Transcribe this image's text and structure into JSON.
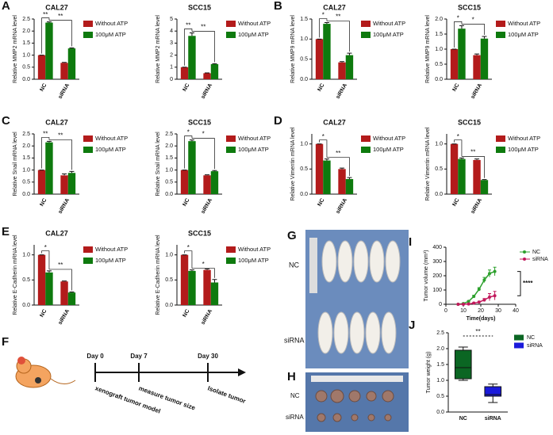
{
  "panels": {
    "letters": [
      "A",
      "B",
      "C",
      "D",
      "E",
      "F",
      "G",
      "H",
      "I",
      "J"
    ]
  },
  "diagram": {
    "days": [
      "Day 0",
      "Day 7",
      "Day 30"
    ],
    "steps": [
      "xenograft tumor model",
      "measure tumor size",
      "Isolate tumor"
    ]
  },
  "photos": {
    "G": {
      "labels": [
        "NC",
        "siRNA"
      ]
    },
    "H": {
      "labels": [
        "NC",
        "siRNA"
      ]
    }
  },
  "chart_data": [
    {
      "type": "bar",
      "title": "CAL27",
      "y_label": "Relative MMP2 mRNA level",
      "categories": [
        "NC",
        "siRNA"
      ],
      "series": [
        {
          "name": "Without ATP",
          "color": "#b31b1b",
          "values": [
            1.0,
            0.68
          ],
          "errors": [
            0,
            0.02
          ]
        },
        {
          "name": "100μM ATP",
          "color": "#0e7a0e",
          "values": [
            2.35,
            1.28
          ],
          "errors": [
            0.03,
            0.02
          ]
        }
      ],
      "ylim": [
        0,
        2.5
      ],
      "yticks": [
        {
          "value": 0,
          "label": "0.0"
        },
        {
          "value": 0.5,
          "label": "0.5"
        },
        {
          "value": 1,
          "label": "1.0"
        },
        {
          "value": 1.5,
          "label": "1.5"
        },
        {
          "value": 2,
          "label": "2.0"
        },
        {
          "value": 2.5,
          "label": "2.5"
        }
      ],
      "annotations": [
        "**",
        "**"
      ]
    },
    {
      "type": "bar",
      "title": "SCC15",
      "y_label": "Relative MMP2 mRNA level",
      "categories": [
        "NC",
        "siRNA"
      ],
      "series": [
        {
          "name": "Without ATP",
          "color": "#b31b1b",
          "values": [
            1.0,
            0.5
          ],
          "errors": [
            0,
            0.03
          ]
        },
        {
          "name": "100μM ATP",
          "color": "#0e7a0e",
          "values": [
            3.6,
            1.25
          ],
          "errors": [
            0.25,
            0.04
          ]
        }
      ],
      "ylim": [
        0,
        5
      ],
      "yticks": [
        0,
        1,
        2,
        3,
        4,
        5
      ],
      "annotations": [
        "**",
        "**"
      ]
    },
    {
      "type": "bar",
      "title": "CAL27",
      "y_label": "Relative MMP9 mRNA level",
      "categories": [
        "NC",
        "siRNA"
      ],
      "series": [
        {
          "name": "Without ATP",
          "color": "#b31b1b",
          "values": [
            1.0,
            0.42
          ],
          "errors": [
            0,
            0.02
          ]
        },
        {
          "name": "100μM ATP",
          "color": "#0e7a0e",
          "values": [
            1.38,
            0.6
          ],
          "errors": [
            0.03,
            0.05
          ]
        }
      ],
      "ylim": [
        0,
        1.5
      ],
      "yticks": [
        {
          "value": 0,
          "label": "0.0"
        },
        {
          "value": 0.5,
          "label": "0.5"
        },
        {
          "value": 1,
          "label": "1.0"
        },
        {
          "value": 1.5,
          "label": "1.5"
        }
      ],
      "annotations": [
        "*",
        "**"
      ]
    },
    {
      "type": "bar",
      "title": "SCC15",
      "y_label": "Relative MMP9 mRNA level",
      "categories": [
        "NC",
        "siRNA"
      ],
      "series": [
        {
          "name": "Without ATP",
          "color": "#b31b1b",
          "values": [
            1.0,
            0.8
          ],
          "errors": [
            0,
            0.04
          ]
        },
        {
          "name": "100μM ATP",
          "color": "#0e7a0e",
          "values": [
            1.68,
            1.35
          ],
          "errors": [
            0.1,
            0.07
          ]
        }
      ],
      "ylim": [
        0,
        2
      ],
      "yticks": [
        {
          "value": 0,
          "label": "0.0"
        },
        {
          "value": 0.5,
          "label": "0.5"
        },
        {
          "value": 1,
          "label": "1.0"
        },
        {
          "value": 1.5,
          "label": "1.5"
        },
        {
          "value": 2,
          "label": "2.0"
        }
      ],
      "annotations": [
        "*",
        "*"
      ]
    },
    {
      "type": "bar",
      "title": "CAL27",
      "y_label": "Relative Snail mRNA level",
      "categories": [
        "NC",
        "siRNA"
      ],
      "series": [
        {
          "name": "Without ATP",
          "color": "#b31b1b",
          "values": [
            1.0,
            0.78
          ],
          "errors": [
            0,
            0.06
          ]
        },
        {
          "name": "100μM ATP",
          "color": "#0e7a0e",
          "values": [
            2.15,
            0.88
          ],
          "errors": [
            0.04,
            0.06
          ]
        }
      ],
      "ylim": [
        0,
        2.5
      ],
      "yticks": [
        {
          "value": 0,
          "label": "0.0"
        },
        {
          "value": 0.5,
          "label": "0.5"
        },
        {
          "value": 1,
          "label": "1.0"
        },
        {
          "value": 1.5,
          "label": "1.5"
        },
        {
          "value": 2,
          "label": "2.0"
        },
        {
          "value": 2.5,
          "label": "2.5"
        }
      ],
      "annotations": [
        "**",
        "**"
      ]
    },
    {
      "type": "bar",
      "title": "SCC15",
      "y_label": "Relative Snail mRNA level",
      "categories": [
        "NC",
        "siRNA"
      ],
      "series": [
        {
          "name": "Without ATP",
          "color": "#b31b1b",
          "values": [
            1.0,
            0.78
          ],
          "errors": [
            0,
            0.02
          ]
        },
        {
          "name": "100μM ATP",
          "color": "#0e7a0e",
          "values": [
            2.2,
            0.95
          ],
          "errors": [
            0.05,
            0.03
          ]
        }
      ],
      "ylim": [
        0,
        2.5
      ],
      "yticks": [
        {
          "value": 0,
          "label": "0.0"
        },
        {
          "value": 0.5,
          "label": "0.5"
        },
        {
          "value": 1,
          "label": "1.0"
        },
        {
          "value": 1.5,
          "label": "1.5"
        },
        {
          "value": 2,
          "label": "2.0"
        },
        {
          "value": 2.5,
          "label": "2.5"
        }
      ],
      "annotations": [
        "*",
        "*"
      ]
    },
    {
      "type": "bar",
      "title": "CAL27",
      "y_label": "Relative Vimentin mRNA level",
      "categories": [
        "NC",
        "siRNA"
      ],
      "series": [
        {
          "name": "Without ATP",
          "color": "#b31b1b",
          "values": [
            1.0,
            0.5
          ],
          "errors": [
            0,
            0.02
          ]
        },
        {
          "name": "100μM ATP",
          "color": "#0e7a0e",
          "values": [
            0.67,
            0.3
          ],
          "errors": [
            0.03,
            0.03
          ]
        }
      ],
      "ylim": [
        0,
        1.2
      ],
      "yticks": [
        {
          "value": 0,
          "label": "0.0"
        },
        {
          "value": 0.5,
          "label": "0.5"
        },
        {
          "value": 1,
          "label": "1.0"
        }
      ],
      "annotations": [
        "*",
        "**"
      ]
    },
    {
      "type": "bar",
      "title": "SCC15",
      "y_label": "Relative Vimentin mRNA level",
      "categories": [
        "NC",
        "siRNA"
      ],
      "series": [
        {
          "name": "Without ATP",
          "color": "#b31b1b",
          "values": [
            1.0,
            0.68
          ],
          "errors": [
            0,
            0.02
          ]
        },
        {
          "name": "100μM ATP",
          "color": "#0e7a0e",
          "values": [
            0.7,
            0.28
          ],
          "errors": [
            0.02,
            0.01
          ]
        }
      ],
      "ylim": [
        0,
        1.2
      ],
      "yticks": [
        {
          "value": 0,
          "label": "0.0"
        },
        {
          "value": 0.5,
          "label": "0.5"
        },
        {
          "value": 1,
          "label": "1.0"
        }
      ],
      "annotations": [
        "*",
        "**"
      ]
    },
    {
      "type": "bar",
      "title": "CAL27",
      "y_label": "Relative E-Cadherin mRNA level",
      "categories": [
        "NC",
        "siRNA"
      ],
      "series": [
        {
          "name": "Without ATP",
          "color": "#b31b1b",
          "values": [
            1.0,
            0.47
          ],
          "errors": [
            0,
            0.01
          ]
        },
        {
          "name": "100μM ATP",
          "color": "#0e7a0e",
          "values": [
            0.65,
            0.25
          ],
          "errors": [
            0.03,
            0.01
          ]
        }
      ],
      "ylim": [
        0,
        1.2
      ],
      "yticks": [
        {
          "value": 0,
          "label": "0.0"
        },
        {
          "value": 0.5,
          "label": "0.5"
        },
        {
          "value": 1,
          "label": "1.0"
        }
      ],
      "annotations": [
        "*",
        "**"
      ]
    },
    {
      "type": "bar",
      "title": "SCC15",
      "y_label": "Relative E-Cadherin mRNA level",
      "categories": [
        "NC",
        "siRNA"
      ],
      "series": [
        {
          "name": "Without ATP",
          "color": "#b31b1b",
          "values": [
            1.0,
            0.7
          ],
          "errors": [
            0,
            0.02
          ]
        },
        {
          "name": "100μM ATP",
          "color": "#0e7a0e",
          "values": [
            0.68,
            0.45
          ],
          "errors": [
            0.02,
            0.06
          ]
        }
      ],
      "ylim": [
        0,
        1.2
      ],
      "yticks": [
        {
          "value": 0,
          "label": "0.0"
        },
        {
          "value": 0.5,
          "label": "0.5"
        },
        {
          "value": 1,
          "label": "1.0"
        }
      ],
      "annotations": [
        "*",
        "*"
      ]
    },
    {
      "type": "line",
      "y_label": "Tumor volume (mm³)",
      "x_label": "Time(days)",
      "x": [
        7,
        10,
        13,
        16,
        19,
        22,
        25,
        28
      ],
      "series": [
        {
          "name": "NC",
          "color": "#2ca02c",
          "values": [
            0,
            5,
            20,
            55,
            105,
            170,
            215,
            230
          ],
          "errors": [
            0,
            2,
            5,
            8,
            12,
            18,
            25,
            30
          ]
        },
        {
          "name": "siRNA",
          "color": "#c2185b",
          "values": [
            0,
            0,
            2,
            8,
            15,
            30,
            50,
            60
          ],
          "errors": [
            0,
            0,
            2,
            4,
            6,
            10,
            25,
            30
          ]
        }
      ],
      "xlim": [
        0,
        40
      ],
      "xticks": [
        0,
        10,
        20,
        30,
        40
      ],
      "ylim": [
        0,
        400
      ],
      "yticks": [
        0,
        100,
        200,
        300,
        400
      ],
      "annotations": [
        "****"
      ]
    },
    {
      "type": "box",
      "y_label": "Tumor weight (g)",
      "categories": [
        "NC",
        "siRNA"
      ],
      "colors": [
        "#0b6623",
        "#1a1adb"
      ],
      "min": [
        1.0,
        0.3
      ],
      "q1": [
        1.05,
        0.5
      ],
      "median": [
        1.4,
        0.55
      ],
      "q3": [
        1.95,
        0.8
      ],
      "max": [
        2.05,
        0.88
      ],
      "ylim": [
        0,
        2.5
      ],
      "yticks": [
        {
          "value": 0,
          "label": "0.0"
        },
        {
          "value": 0.5,
          "label": "0.5"
        },
        {
          "value": 1,
          "label": "1.0"
        },
        {
          "value": 1.5,
          "label": "1.5"
        },
        {
          "value": 2,
          "label": "2.0"
        },
        {
          "value": 2.5,
          "label": "2.5"
        }
      ],
      "annotations": [
        "**"
      ]
    }
  ]
}
